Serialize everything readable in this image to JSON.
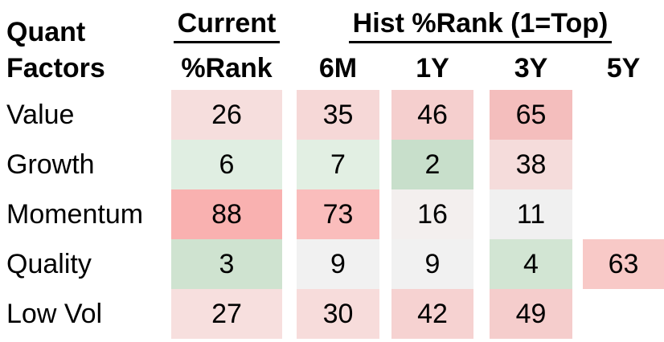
{
  "page": {
    "background": "#ffffff",
    "text_color": "#000000",
    "underline_color": "#000000"
  },
  "table": {
    "corner": {
      "line1": "Quant",
      "line2": "Factors"
    },
    "group_headers": {
      "current": "Current",
      "hist": "Hist %Rank (1=Top)"
    },
    "column_headers": {
      "rank": "%Rank",
      "m6": "6M",
      "y1": "1Y",
      "y3": "3Y",
      "y5": "5Y"
    },
    "rows": [
      {
        "label": "Value",
        "cells": [
          {
            "value": "26",
            "bg": "#f6dedd"
          },
          {
            "value": "35",
            "bg": "#f6d8d7"
          },
          {
            "value": "46",
            "bg": "#f5cfce"
          },
          {
            "value": "65",
            "bg": "#f4bebd"
          },
          {
            "value": "",
            "bg": null
          }
        ]
      },
      {
        "label": "Growth",
        "cells": [
          {
            "value": "6",
            "bg": "#e0eee2"
          },
          {
            "value": "7",
            "bg": "#e2efe3"
          },
          {
            "value": "2",
            "bg": "#c8dfcb"
          },
          {
            "value": "38",
            "bg": "#f5dcdb"
          },
          {
            "value": "",
            "bg": null
          }
        ]
      },
      {
        "label": "Momentum",
        "cells": [
          {
            "value": "88",
            "bg": "#f9b1b0"
          },
          {
            "value": "73",
            "bg": "#fabdbc"
          },
          {
            "value": "16",
            "bg": "#f3efee"
          },
          {
            "value": "11",
            "bg": "#f0f0f0"
          },
          {
            "value": "",
            "bg": null
          }
        ]
      },
      {
        "label": "Quality",
        "cells": [
          {
            "value": "3",
            "bg": "#cfe3d0"
          },
          {
            "value": "9",
            "bg": "#f1f1f1"
          },
          {
            "value": "9",
            "bg": "#f1f1f1"
          },
          {
            "value": "4",
            "bg": "#d2e5d3"
          },
          {
            "value": "63",
            "bg": "#f8c9c7"
          }
        ]
      },
      {
        "label": "Low Vol",
        "cells": [
          {
            "value": "27",
            "bg": "#f7dfde"
          },
          {
            "value": "30",
            "bg": "#f7dcdb"
          },
          {
            "value": "42",
            "bg": "#f6d2d1"
          },
          {
            "value": "49",
            "bg": "#f5cdcc"
          },
          {
            "value": "",
            "bg": null
          }
        ]
      }
    ]
  },
  "chart_data": {
    "type": "heatmap",
    "row_header": "Quant Factors",
    "column_groups": [
      {
        "label": "Current",
        "columns": [
          "%Rank"
        ]
      },
      {
        "label": "Hist %Rank (1=Top)",
        "columns": [
          "6M",
          "1Y",
          "3Y",
          "5Y"
        ]
      }
    ],
    "columns": [
      "%Rank",
      "6M",
      "1Y",
      "3Y",
      "5Y"
    ],
    "rows": [
      "Value",
      "Growth",
      "Momentum",
      "Quality",
      "Low Vol"
    ],
    "values": [
      [
        26,
        35,
        46,
        65,
        null
      ],
      [
        6,
        7,
        2,
        38,
        null
      ],
      [
        88,
        73,
        16,
        11,
        null
      ],
      [
        3,
        9,
        9,
        4,
        63
      ],
      [
        27,
        30,
        42,
        49,
        null
      ]
    ],
    "value_range": [
      1,
      100
    ],
    "legend_note": "1=Top",
    "colorscale": {
      "low": "#c8dfcb",
      "mid": "#f1f1f1",
      "high": "#f9b1b0"
    }
  }
}
